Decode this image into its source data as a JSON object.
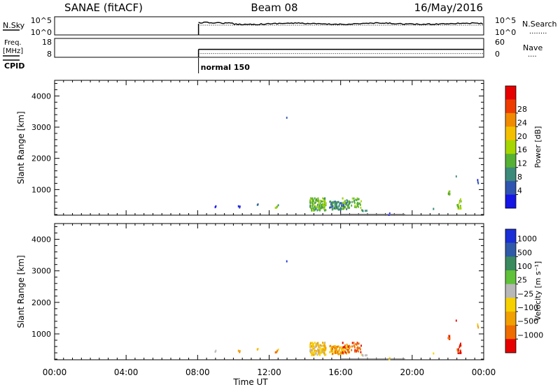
{
  "header": {
    "station": "SANAE (fitACF)",
    "beam": "Beam 08",
    "date": "16/May/2016"
  },
  "noise_panel": {
    "left_label": "N.Sky",
    "left_ticks": [
      "10^5",
      "10^0"
    ],
    "right_ticks": [
      "10^5",
      "10^0"
    ],
    "right_label": "N.Search",
    "right_line_style": "dotted",
    "right_line_glyph": "........"
  },
  "freq_panel": {
    "left_label_top": "Freq.",
    "left_label_bottom": "[MHz]",
    "left_ticks": [
      "18",
      "8"
    ],
    "right_ticks": [
      "60",
      "0"
    ],
    "right_label": "Nave",
    "right_line_glyph": "....",
    "left_range": [
      8,
      18
    ],
    "right_range": [
      0,
      60
    ],
    "freq_level": 12.2,
    "nave_level": 12
  },
  "cpid": {
    "label": "CPID",
    "mode": "normal 150",
    "start_hour": 8.05
  },
  "chart_data": [
    {
      "type": "scatter",
      "panel": "power",
      "ylabel": "Slant Range [km]",
      "ylim": [
        180,
        4500
      ],
      "yticks": [
        1000,
        2000,
        3000,
        4000
      ],
      "colorbar": {
        "label": "Power [dB]",
        "ticks": [
          "4",
          "8",
          "12",
          "16",
          "20",
          "24",
          "28"
        ],
        "colors": [
          "#1515e6",
          "#2f55b0",
          "#3c8a7a",
          "#56b034",
          "#a6d600",
          "#f3c000",
          "#f08a00",
          "#ee3c00",
          "#e60000"
        ]
      },
      "clusters": [
        {
          "t": 9.0,
          "r": 480,
          "n": 2,
          "dt": 0.05,
          "dr": 20,
          "c": 1
        },
        {
          "t": 10.3,
          "r": 460,
          "n": 3,
          "dt": 0.1,
          "dr": 40,
          "c": 0
        },
        {
          "t": 11.3,
          "r": 540,
          "n": 2,
          "dt": 0.05,
          "dr": 20,
          "c": 1
        },
        {
          "t": 12.4,
          "r": 480,
          "n": 5,
          "dt": 0.1,
          "dr": 60,
          "c": 3
        },
        {
          "t": 12.95,
          "r": 3330,
          "n": 1,
          "dt": 0.02,
          "dr": 10,
          "c": 2
        },
        {
          "t": 14.7,
          "r": 560,
          "n": 130,
          "dt": 0.45,
          "dr": 200,
          "c": 3
        },
        {
          "t": 15.9,
          "r": 520,
          "n": 90,
          "dt": 0.55,
          "dr": 130,
          "c": 2
        },
        {
          "t": 16.6,
          "r": 590,
          "n": 50,
          "dt": 0.55,
          "dr": 160,
          "c": 3
        },
        {
          "t": 17.3,
          "r": 380,
          "n": 5,
          "dt": 0.2,
          "dr": 40,
          "c": 2
        },
        {
          "t": 18.7,
          "r": 240,
          "n": 4,
          "dt": 0.05,
          "dr": 30,
          "c": 0
        },
        {
          "t": 21.2,
          "r": 430,
          "n": 2,
          "dt": 0.05,
          "dr": 20,
          "c": 2
        },
        {
          "t": 22.0,
          "r": 920,
          "n": 10,
          "dt": 0.08,
          "dr": 90,
          "c": 3
        },
        {
          "t": 22.6,
          "r": 560,
          "n": 18,
          "dt": 0.12,
          "dr": 170,
          "c": 3
        },
        {
          "t": 22.45,
          "r": 1450,
          "n": 1,
          "dt": 0.02,
          "dr": 10,
          "c": 1
        },
        {
          "t": 23.65,
          "r": 1270,
          "n": 3,
          "dt": 0.05,
          "dr": 80,
          "c": 0
        }
      ]
    },
    {
      "type": "scatter",
      "panel": "velocity",
      "ylabel": "Slant Range [km]",
      "ylim": [
        180,
        4500
      ],
      "yticks": [
        1000,
        2000,
        3000,
        4000
      ],
      "colorbar": {
        "label": "Velocity [m s⁻¹]",
        "ticks": [
          "1000",
          "500",
          "100",
          "25",
          "−25",
          "−100",
          "−500",
          "−1000"
        ],
        "colors": [
          "#1a2fd6",
          "#2f5aa8",
          "#3a8a5e",
          "#60c13a",
          "#b8b8b8",
          "#f7d000",
          "#f0a000",
          "#ee6c00",
          "#e60000"
        ]
      },
      "clusters": [
        {
          "t": 9.0,
          "r": 480,
          "n": 2,
          "dt": 0.05,
          "dr": 20,
          "c": 5
        },
        {
          "t": 10.3,
          "r": 460,
          "n": 3,
          "dt": 0.1,
          "dr": 40,
          "c": 6
        },
        {
          "t": 11.3,
          "r": 540,
          "n": 2,
          "dt": 0.05,
          "dr": 20,
          "c": 5
        },
        {
          "t": 12.4,
          "r": 480,
          "n": 5,
          "dt": 0.1,
          "dr": 60,
          "c": 6
        },
        {
          "t": 12.95,
          "r": 3330,
          "n": 1,
          "dt": 0.02,
          "dr": 10,
          "c": 1
        },
        {
          "t": 14.7,
          "r": 560,
          "n": 130,
          "dt": 0.45,
          "dr": 200,
          "c": 5
        },
        {
          "t": 15.9,
          "r": 520,
          "n": 90,
          "dt": 0.55,
          "dr": 130,
          "c": 6
        },
        {
          "t": 16.6,
          "r": 590,
          "n": 50,
          "dt": 0.55,
          "dr": 160,
          "c": 7
        },
        {
          "t": 17.3,
          "r": 380,
          "n": 5,
          "dt": 0.2,
          "dr": 40,
          "c": 4
        },
        {
          "t": 18.7,
          "r": 240,
          "n": 4,
          "dt": 0.05,
          "dr": 30,
          "c": 5
        },
        {
          "t": 21.2,
          "r": 430,
          "n": 2,
          "dt": 0.05,
          "dr": 20,
          "c": 5
        },
        {
          "t": 22.0,
          "r": 920,
          "n": 10,
          "dt": 0.08,
          "dr": 90,
          "c": 7
        },
        {
          "t": 22.6,
          "r": 560,
          "n": 18,
          "dt": 0.12,
          "dr": 170,
          "c": 7
        },
        {
          "t": 22.45,
          "r": 1450,
          "n": 1,
          "dt": 0.02,
          "dr": 10,
          "c": 7
        },
        {
          "t": 23.65,
          "r": 1270,
          "n": 3,
          "dt": 0.05,
          "dr": 80,
          "c": 5
        }
      ]
    }
  ],
  "time_axis": {
    "xlabel": "Time UT",
    "xlim": [
      0,
      24
    ],
    "tick_labels": [
      "00:00",
      "04:00",
      "08:00",
      "12:00",
      "16:00",
      "20:00",
      "00:00"
    ],
    "tick_hours": [
      0,
      4,
      8,
      12,
      16,
      20,
      24
    ]
  }
}
